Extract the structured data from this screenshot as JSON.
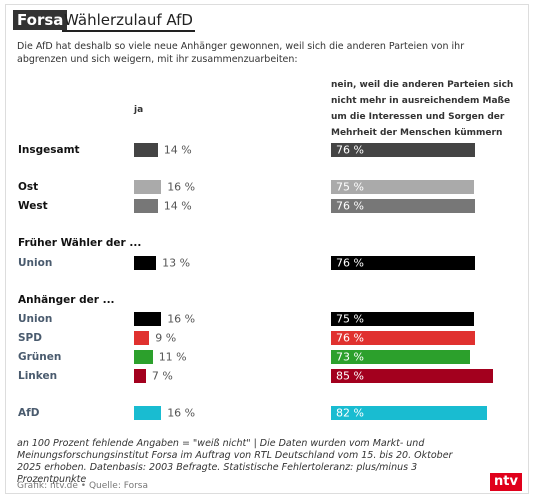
{
  "chart_data": {
    "type": "bar",
    "brand": "Forsa",
    "title": "Wählerzulauf AfD",
    "subtitle": "Die AfD hat deshalb so viele neue Anhänger gewonnen, weil sich die anderen Parteien von ihr abgrenzen und sich weigern, mit ihr zusammenzuarbeiten:",
    "categories": [
      "Insgesamt",
      "Ost",
      "West",
      "Früher Wähler der ...",
      "Union",
      "Anhänger der ...",
      "Union",
      "SPD",
      "Grünen",
      "Linken",
      "AfD"
    ],
    "colors": [
      "#444444",
      "#aaaaaa",
      "#777777",
      null,
      "#000000",
      null,
      "#000000",
      "#e0312f",
      "#2ca02c",
      "#a3001e",
      "#19bcd1"
    ],
    "series": [
      {
        "name": "ja",
        "values": [
          14,
          16,
          14,
          null,
          13,
          null,
          16,
          9,
          11,
          7,
          16
        ],
        "value_labels": [
          "14 %",
          "16 %",
          "14 %",
          null,
          "13 %",
          null,
          "16 %",
          "9 %",
          "11 %",
          "7 %",
          "16 %"
        ]
      },
      {
        "name": "nein, weil die anderen Parteien sich nicht mehr in ausreichendem Maße um die Interessen und Sorgen der Mehrheit der Menschen kümmern",
        "values": [
          76,
          75,
          76,
          null,
          76,
          null,
          75,
          76,
          73,
          85,
          82
        ],
        "value_labels": [
          "76 %",
          "75 %",
          "76 %",
          null,
          "76 %",
          null,
          "75 %",
          "76 %",
          "73 %",
          "85 %",
          "82 %"
        ]
      }
    ],
    "note": "an 100 Prozent fehlende Angaben = \"weiß nicht\" | Die Daten wurden vom Markt- und Meinungsforschungsinstitut Forsa im Auftrag von RTL Deutschland vom 15. bis 20. Oktober 2025 erhoben. Datenbasis: 2003 Befragte. Statistische Fehlertoleranz: plus/minus 3 Prozentpunkte",
    "source": "Grafik: ntv.de • Quelle: Forsa",
    "logo": "ntv"
  }
}
